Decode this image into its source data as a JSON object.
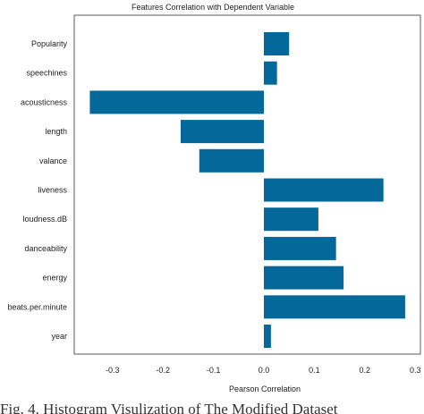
{
  "chart_data": {
    "type": "bar",
    "orientation": "horizontal",
    "title": "Features Correlation with Dependent Variable",
    "xlabel": "Pearson Correlation",
    "ylabel": "",
    "xlim": [
      -0.38,
      0.3
    ],
    "xticks": [
      "-0.3",
      "-0.2",
      "-0.1",
      "0.0",
      "0.1",
      "0.2",
      "0.3"
    ],
    "categories": [
      "Popularity",
      "speechines",
      "acousticness",
      "length",
      "valance",
      "liveness",
      "loudness.dB",
      "danceability",
      "energy",
      "beats.per.minute",
      "year"
    ],
    "values": [
      0.05,
      0.026,
      -0.345,
      -0.165,
      -0.128,
      0.237,
      0.108,
      0.143,
      0.158,
      0.28,
      0.014
    ],
    "bar_color": "#04689A",
    "grid": false,
    "legend": "none"
  },
  "caption": "Fig. 4.  Histogram Visulization of The Modified Dataset"
}
